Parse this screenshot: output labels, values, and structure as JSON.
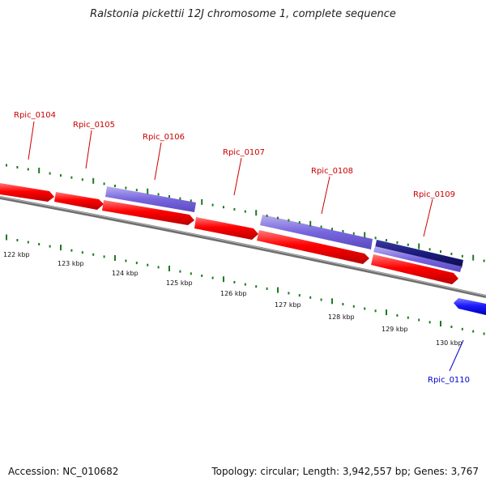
{
  "title": "Ralstonia pickettii 12J chromosome 1, complete sequence",
  "accession_text": "Accession: NC_010682",
  "topology_text": "Topology: circular; Length: 3,942,557 bp; Genes: 3,767",
  "colors": {
    "forward_cds": "#ff0000",
    "reverse_cds": "#1a1aff",
    "rna_light": "#7766dd",
    "rna_dark": "#1a1a7a",
    "backbone": "#777777",
    "ticks": "#1e7a1e",
    "label_forward": "#cc0000",
    "label_reverse": "#0000cc"
  },
  "scale": {
    "unit": "kbp",
    "labels": [
      "122 kbp",
      "123 kbp",
      "124 kbp",
      "125 kbp",
      "126 kbp",
      "127 kbp",
      "128 kbp",
      "129 kbp",
      "130 kbp"
    ]
  },
  "genes": [
    {
      "name": "Rpic_0104",
      "strand": "+",
      "track": "outer",
      "kind": "cds"
    },
    {
      "name": "Rpic_0105",
      "strand": "+",
      "track": "outer",
      "kind": "cds"
    },
    {
      "name": "Rpic_0106",
      "strand": "+",
      "track": "outer",
      "kind": "rna"
    },
    {
      "name": "Rpic_0107",
      "strand": "+",
      "track": "inner",
      "kind": "cds"
    },
    {
      "name": "Rpic_0108",
      "strand": "+",
      "track": "outer",
      "kind": "rna"
    },
    {
      "name": "Rpic_0109",
      "strand": "+",
      "track": "outer",
      "kind": "rna-dark"
    },
    {
      "name": "Rpic_0110",
      "strand": "-",
      "track": "reverse",
      "kind": "cds"
    }
  ]
}
